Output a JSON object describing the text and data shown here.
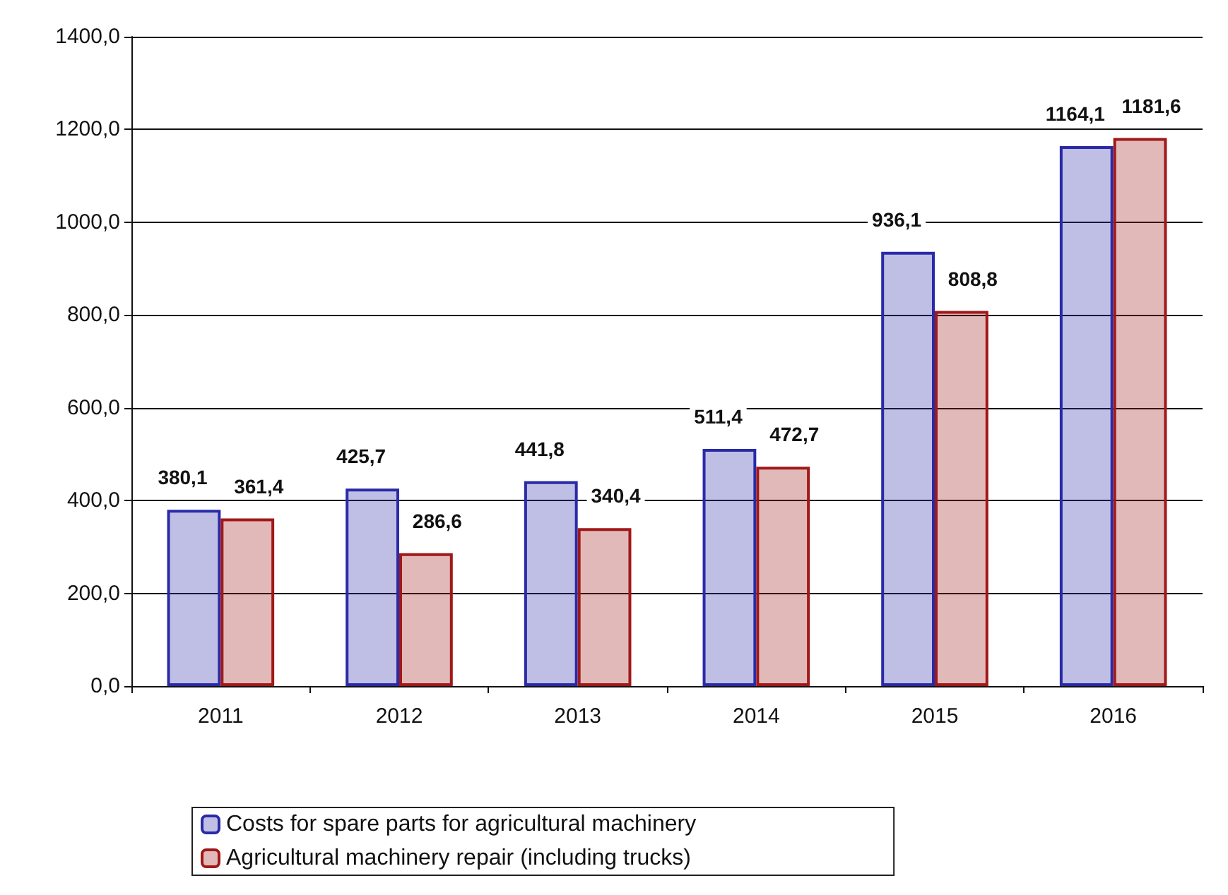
{
  "chart_data": {
    "type": "bar",
    "categories": [
      "2011",
      "2012",
      "2013",
      "2014",
      "2015",
      "2016"
    ],
    "series": [
      {
        "name": "Costs for spare parts for agricultural machinery",
        "color": "#2a2aa8",
        "values": [
          380.1,
          425.7,
          441.8,
          511.4,
          936.1,
          1164.1
        ],
        "value_labels": [
          "380,1",
          "425,7",
          "441,8",
          "511,4",
          "936,1",
          "1164,1"
        ]
      },
      {
        "name": "Agricultural machinery repair (including trucks)",
        "color": "#a01818",
        "values": [
          361.4,
          286.6,
          340.4,
          472.7,
          808.8,
          1181.6
        ],
        "value_labels": [
          "361,4",
          "286,6",
          "340,4",
          "472,7",
          "808,8",
          "1181,6"
        ]
      }
    ],
    "ylim": [
      0,
      1400
    ],
    "yticks": [
      {
        "value": 0,
        "label": "0,0"
      },
      {
        "value": 200,
        "label": "200,0"
      },
      {
        "value": 400,
        "label": "400,0"
      },
      {
        "value": 600,
        "label": "600,0"
      },
      {
        "value": 800,
        "label": "800,0"
      },
      {
        "value": 1000,
        "label": "1000,0"
      },
      {
        "value": 1200,
        "label": "1200,0"
      },
      {
        "value": 1400,
        "label": "1400,0"
      }
    ],
    "grid": "y",
    "legend": "bottom"
  }
}
